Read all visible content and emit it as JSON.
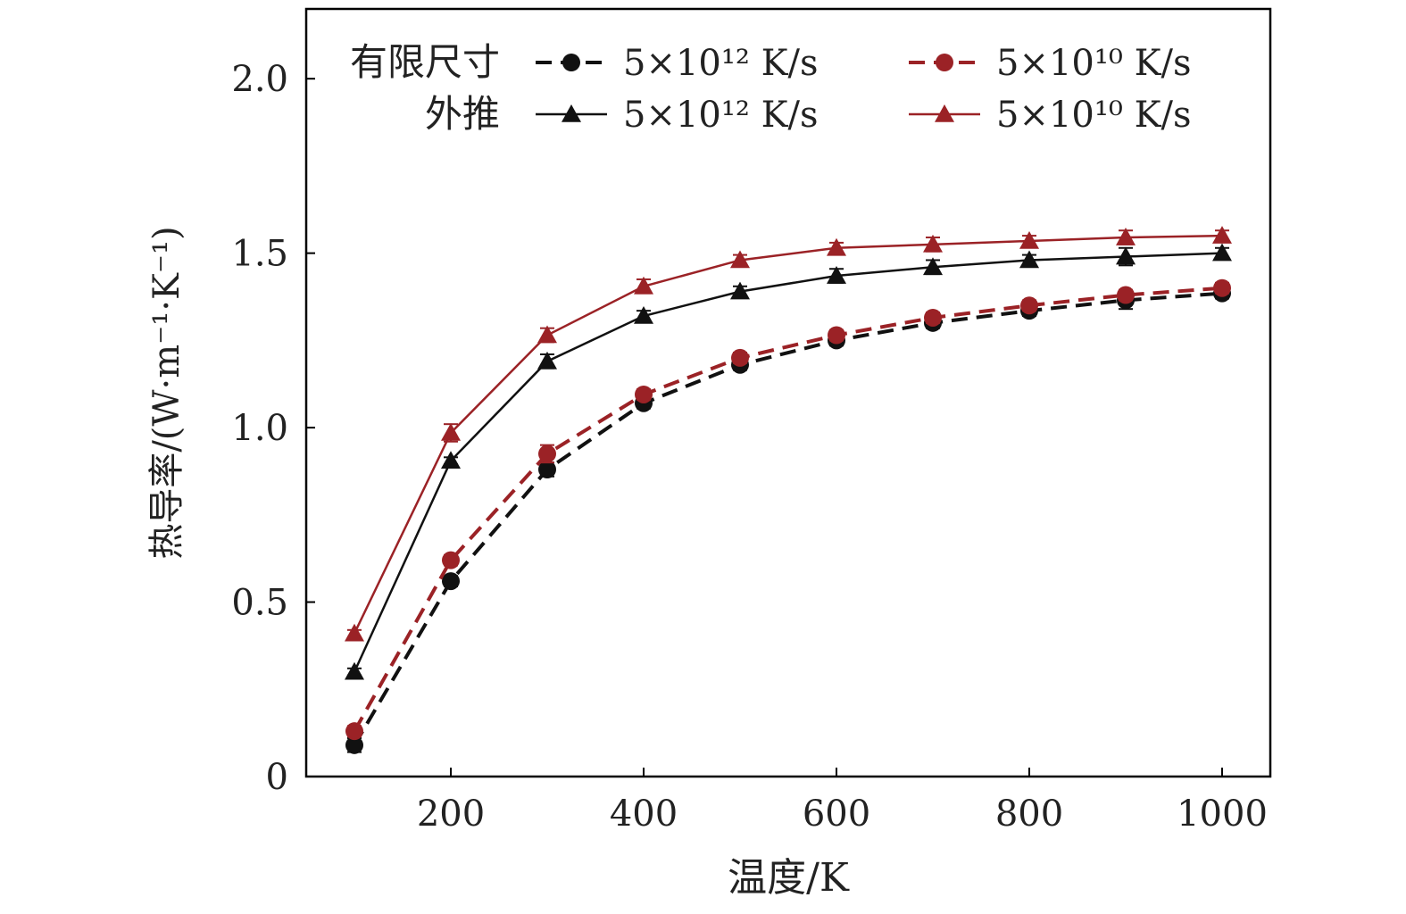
{
  "chart_data": {
    "type": "line",
    "xlabel": "温度/K",
    "ylabel": "热导率/(W·m⁻¹·K⁻¹)",
    "xlim": [
      50,
      1050
    ],
    "ylim": [
      0,
      2.2
    ],
    "xticks": [
      200,
      400,
      600,
      800,
      1000
    ],
    "xtick_labels": [
      "200",
      "400",
      "600",
      "800",
      "1000"
    ],
    "yticks": [
      0,
      0.5,
      1.0,
      1.5,
      2.0
    ],
    "ytick_labels": [
      "0",
      "0.5",
      "1.0",
      "1.5",
      "2.0"
    ],
    "grid": false,
    "legend_position": "top",
    "legend_groups": [
      "有限尺寸",
      "外推"
    ],
    "x": [
      100,
      200,
      300,
      400,
      500,
      600,
      700,
      800,
      900,
      1000
    ],
    "series": [
      {
        "name": "5×10¹² K/s",
        "group": "有限尺寸",
        "color": "#111111",
        "marker": "circle",
        "dash": true,
        "values": [
          0.09,
          0.56,
          0.88,
          1.07,
          1.18,
          1.25,
          1.3,
          1.335,
          1.365,
          1.385
        ],
        "errors": [
          0.02,
          0.015,
          0.02,
          0.015,
          0.015,
          0.015,
          0.015,
          0.015,
          0.025,
          0.015
        ]
      },
      {
        "name": "5×10¹⁰ K/s",
        "group": "有限尺寸",
        "color": "#9b2226",
        "marker": "circle",
        "dash": true,
        "values": [
          0.13,
          0.62,
          0.925,
          1.095,
          1.2,
          1.265,
          1.315,
          1.35,
          1.38,
          1.4
        ],
        "errors": [
          0.015,
          0.015,
          0.025,
          0.015,
          0.015,
          0.015,
          0.015,
          0.015,
          0.015,
          0.015
        ]
      },
      {
        "name": "5×10¹² K/s",
        "group": "外推",
        "color": "#111111",
        "marker": "triangle",
        "dash": false,
        "values": [
          0.3,
          0.905,
          1.19,
          1.32,
          1.39,
          1.435,
          1.46,
          1.48,
          1.49,
          1.5
        ],
        "errors": [
          0.01,
          0.01,
          0.02,
          0.015,
          0.015,
          0.02,
          0.02,
          0.015,
          0.025,
          0.015
        ]
      },
      {
        "name": "5×10¹⁰ K/s",
        "group": "外推",
        "color": "#9b2226",
        "marker": "triangle",
        "dash": false,
        "values": [
          0.41,
          0.985,
          1.265,
          1.405,
          1.48,
          1.515,
          1.525,
          1.535,
          1.545,
          1.55
        ],
        "errors": [
          0.01,
          0.025,
          0.02,
          0.02,
          0.015,
          0.015,
          0.02,
          0.015,
          0.02,
          0.015
        ]
      }
    ]
  }
}
